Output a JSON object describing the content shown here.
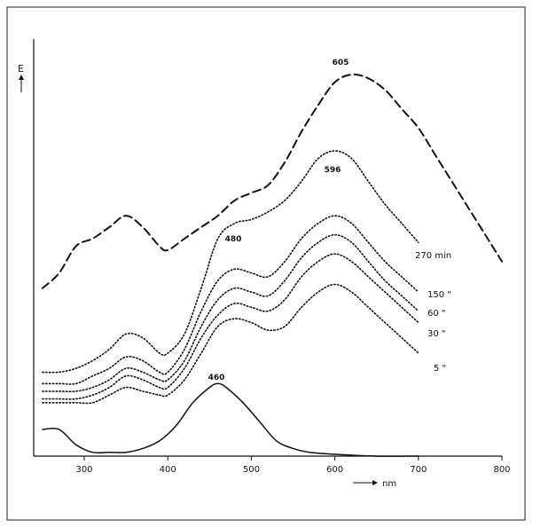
{
  "chart_data": {
    "type": "line",
    "ylabel": "E",
    "xlabel": "nm",
    "xlim": [
      250,
      800
    ],
    "x_ticks": [
      "300",
      "400",
      "500",
      "600",
      "700",
      "800"
    ],
    "grid": false,
    "annotations": [
      "605",
      "596",
      "480",
      "460"
    ],
    "series": [
      {
        "name": "270 min",
        "style": "dashed",
        "x": [
          250,
          270,
          290,
          310,
          330,
          350,
          370,
          390,
          400,
          420,
          440,
          460,
          480,
          500,
          520,
          540,
          560,
          580,
          600,
          620,
          640,
          660,
          680,
          700,
          720,
          740,
          760,
          780,
          800
        ],
        "y": [
          0.44,
          0.48,
          0.55,
          0.57,
          0.6,
          0.63,
          0.6,
          0.55,
          0.54,
          0.57,
          0.6,
          0.63,
          0.67,
          0.69,
          0.71,
          0.77,
          0.85,
          0.92,
          0.98,
          1.0,
          0.99,
          0.96,
          0.91,
          0.86,
          0.79,
          0.72,
          0.65,
          0.58,
          0.51
        ]
      },
      {
        "name": "150 \"",
        "style": "dotted",
        "x": [
          250,
          270,
          290,
          310,
          330,
          350,
          370,
          390,
          400,
          420,
          440,
          460,
          480,
          500,
          520,
          540,
          560,
          580,
          600,
          620,
          640,
          660,
          680,
          700
        ],
        "y": [
          0.22,
          0.22,
          0.23,
          0.25,
          0.28,
          0.32,
          0.31,
          0.27,
          0.27,
          0.32,
          0.44,
          0.57,
          0.61,
          0.62,
          0.64,
          0.67,
          0.72,
          0.78,
          0.8,
          0.78,
          0.72,
          0.66,
          0.61,
          0.56
        ]
      },
      {
        "name": "",
        "style": "dotted",
        "x": [
          250,
          270,
          290,
          310,
          330,
          350,
          370,
          390,
          400,
          420,
          440,
          460,
          480,
          500,
          520,
          540,
          560,
          580,
          600,
          620,
          640,
          660,
          680,
          700
        ],
        "y": [
          0.19,
          0.19,
          0.19,
          0.21,
          0.23,
          0.26,
          0.25,
          0.22,
          0.22,
          0.28,
          0.38,
          0.46,
          0.49,
          0.48,
          0.47,
          0.51,
          0.57,
          0.61,
          0.63,
          0.61,
          0.56,
          0.51,
          0.47,
          0.43
        ]
      },
      {
        "name": "60 \"",
        "style": "dotted",
        "x": [
          250,
          270,
          290,
          310,
          330,
          350,
          370,
          390,
          400,
          420,
          440,
          460,
          480,
          500,
          520,
          540,
          560,
          580,
          600,
          620,
          640,
          660,
          680,
          700
        ],
        "y": [
          0.17,
          0.17,
          0.17,
          0.18,
          0.2,
          0.23,
          0.22,
          0.2,
          0.2,
          0.25,
          0.34,
          0.41,
          0.44,
          0.43,
          0.42,
          0.46,
          0.52,
          0.56,
          0.58,
          0.56,
          0.51,
          0.46,
          0.42,
          0.38
        ]
      },
      {
        "name": "30 \"",
        "style": "dotted",
        "x": [
          250,
          270,
          290,
          310,
          330,
          350,
          370,
          390,
          400,
          420,
          440,
          460,
          480,
          500,
          520,
          540,
          560,
          580,
          600,
          620,
          640,
          660,
          680,
          700
        ],
        "y": [
          0.15,
          0.15,
          0.15,
          0.16,
          0.18,
          0.21,
          0.2,
          0.18,
          0.18,
          0.23,
          0.31,
          0.37,
          0.4,
          0.39,
          0.38,
          0.41,
          0.47,
          0.51,
          0.53,
          0.51,
          0.47,
          0.43,
          0.39,
          0.35
        ]
      },
      {
        "name": "5 \"",
        "style": "dotted",
        "x": [
          250,
          270,
          290,
          310,
          330,
          350,
          370,
          390,
          400,
          420,
          440,
          460,
          480,
          500,
          520,
          540,
          560,
          580,
          600,
          620,
          640,
          660,
          680,
          700
        ],
        "y": [
          0.14,
          0.14,
          0.14,
          0.14,
          0.16,
          0.18,
          0.17,
          0.16,
          0.16,
          0.2,
          0.27,
          0.34,
          0.36,
          0.35,
          0.33,
          0.34,
          0.39,
          0.43,
          0.45,
          0.43,
          0.39,
          0.35,
          0.31,
          0.27
        ]
      },
      {
        "name": "",
        "style": "solid",
        "x": [
          250,
          270,
          290,
          310,
          330,
          350,
          370,
          390,
          410,
          430,
          450,
          460,
          470,
          490,
          510,
          530,
          550,
          570,
          600,
          650,
          700
        ],
        "y": [
          0.07,
          0.07,
          0.03,
          0.01,
          0.01,
          0.01,
          0.02,
          0.04,
          0.08,
          0.14,
          0.18,
          0.19,
          0.18,
          0.14,
          0.09,
          0.04,
          0.02,
          0.01,
          0.005,
          0.0,
          0.0
        ]
      }
    ]
  }
}
